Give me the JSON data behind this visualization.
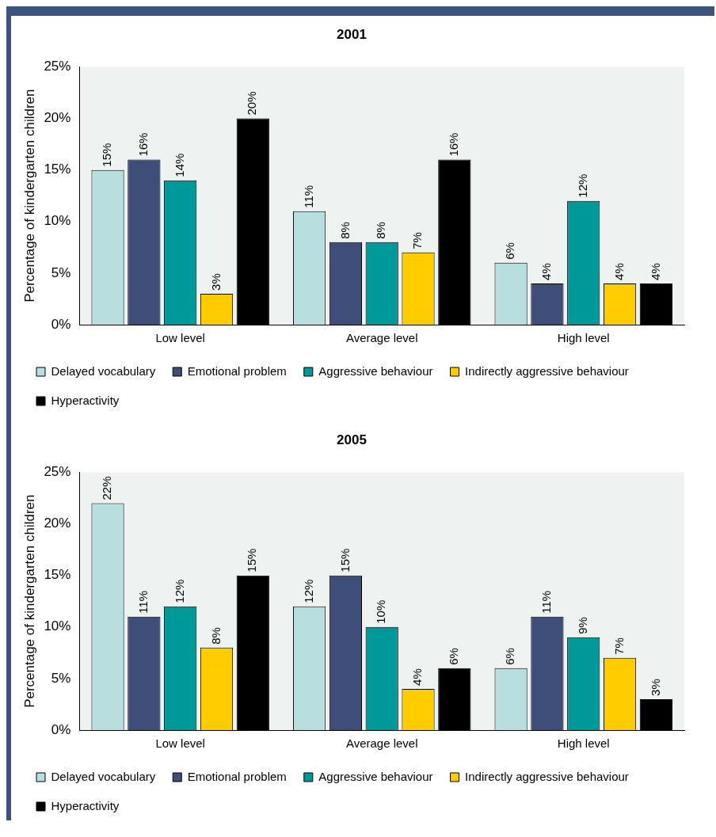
{
  "chart_data": [
    {
      "type": "bar",
      "title": "2001",
      "ylabel": "Percentage of kindergarten children",
      "categories": [
        "Low level",
        "Average level",
        "High level"
      ],
      "ylim": [
        0,
        25
      ],
      "yticks": [
        {
          "value": 0,
          "label": "0%"
        },
        {
          "value": 5,
          "label": "5%"
        },
        {
          "value": 10,
          "label": "10%"
        },
        {
          "value": 15,
          "label": "15%"
        },
        {
          "value": 20,
          "label": "20%"
        },
        {
          "value": 25,
          "label": "25%"
        }
      ],
      "grid": false,
      "legend": "bottom",
      "series": [
        {
          "name": "Delayed vocabulary",
          "color": "#b8dedf",
          "values": [
            15,
            11,
            6
          ],
          "value_labels": [
            "15%",
            "11%",
            "6%"
          ]
        },
        {
          "name": "Emotional problem",
          "color": "#3f4e79",
          "values": [
            16,
            8,
            4
          ],
          "value_labels": [
            "16%",
            "8%",
            "4%"
          ]
        },
        {
          "name": "Aggressive behaviour",
          "color": "#009999",
          "values": [
            14,
            8,
            12
          ],
          "value_labels": [
            "14%",
            "8%",
            "12%"
          ]
        },
        {
          "name": "Indirectly aggressive behaviour",
          "color": "#ffcc00",
          "values": [
            3,
            7,
            4
          ],
          "value_labels": [
            "3%",
            "7%",
            "4%"
          ]
        },
        {
          "name": "Hyperactivity",
          "color": "#000000",
          "values": [
            20,
            16,
            4
          ],
          "value_labels": [
            "20%",
            "16%",
            "4%"
          ]
        }
      ]
    },
    {
      "type": "bar",
      "title": "2005",
      "ylabel": "Percentage of kindergarten children",
      "categories": [
        "Low level",
        "Average level",
        "High level"
      ],
      "ylim": [
        0,
        25
      ],
      "yticks": [
        {
          "value": 0,
          "label": "0%"
        },
        {
          "value": 5,
          "label": "5%"
        },
        {
          "value": 10,
          "label": "10%"
        },
        {
          "value": 15,
          "label": "15%"
        },
        {
          "value": 20,
          "label": "20%"
        },
        {
          "value": 25,
          "label": "25%"
        }
      ],
      "grid": false,
      "legend": "bottom",
      "series": [
        {
          "name": "Delayed vocabulary",
          "color": "#b8dedf",
          "values": [
            22,
            12,
            6
          ],
          "value_labels": [
            "22%",
            "12%",
            "6%"
          ]
        },
        {
          "name": "Emotional problem",
          "color": "#3f4e79",
          "values": [
            11,
            15,
            11
          ],
          "value_labels": [
            "11%",
            "15%",
            "11%"
          ]
        },
        {
          "name": "Aggressive behaviour",
          "color": "#009999",
          "values": [
            12,
            10,
            9
          ],
          "value_labels": [
            "12%",
            "10%",
            "9%"
          ]
        },
        {
          "name": "Indirectly aggressive behaviour",
          "color": "#ffcc00",
          "values": [
            8,
            4,
            7
          ],
          "value_labels": [
            "8%",
            "4%",
            "7%"
          ]
        },
        {
          "name": "Hyperactivity",
          "color": "#000000",
          "values": [
            15,
            6,
            3
          ],
          "value_labels": [
            "15%",
            "6%",
            "3%"
          ]
        }
      ]
    }
  ]
}
